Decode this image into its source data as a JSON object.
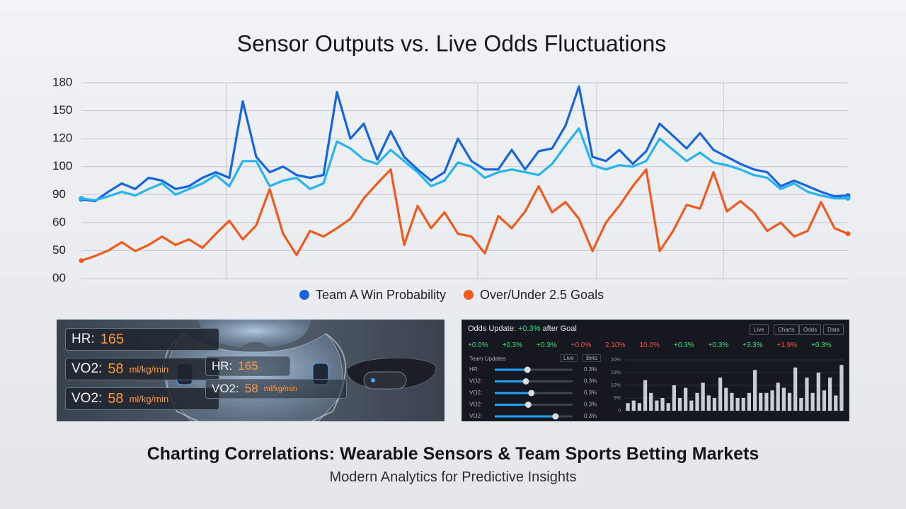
{
  "chart_data": {
    "type": "line",
    "title": "Sensor Outputs vs. Live Odds Fluctuations",
    "ylim": [
      0,
      180
    ],
    "yticks": [
      {
        "value": 0,
        "label": "00"
      },
      50,
      60,
      90,
      100,
      120,
      150,
      180
    ],
    "grid": true,
    "series": [
      {
        "name": "Team A Win Probability",
        "color": "#1565e0",
        "values": [
          85,
          83,
          91,
          94,
          92,
          96,
          95,
          92,
          93,
          96,
          98,
          96,
          160,
          107,
          98,
          100,
          97,
          96,
          97,
          170,
          120,
          136,
          105,
          128,
          107,
          99,
          95,
          98,
          120,
          104,
          99,
          99,
          112,
          99,
          111,
          113,
          134,
          176,
          107,
          104,
          112,
          102,
          111,
          136,
          123,
          113,
          126,
          112,
          107,
          102,
          99,
          98,
          93,
          95,
          93,
          91,
          88,
          89
        ]
      },
      {
        "color": "#25b4f0",
        "values": [
          86,
          84,
          88,
          91,
          89,
          92,
          94,
          90,
          92,
          94,
          97,
          93,
          104,
          104,
          93,
          95,
          96,
          92,
          94,
          118,
          113,
          105,
          102,
          112,
          104,
          98,
          93,
          95,
          103,
          100,
          96,
          98,
          99,
          98,
          97,
          102,
          115,
          131,
          101,
          99,
          101,
          100,
          104,
          120,
          112,
          104,
          110,
          103,
          101,
          99,
          97,
          96,
          92,
          94,
          91,
          89,
          86,
          86
        ]
      },
      {
        "name": "Over/Under 2.5 Goals",
        "color": "#f2591b",
        "values": [
          32,
          40,
          50,
          53,
          49,
          52,
          55,
          52,
          54,
          51,
          56,
          62,
          54,
          59,
          92,
          56,
          42,
          57,
          55,
          58,
          64,
          86,
          94,
          99,
          52,
          78,
          58,
          71,
          56,
          55,
          45,
          67,
          58,
          72,
          93,
          71,
          82,
          64,
          49,
          60,
          78,
          93,
          99,
          49,
          57,
          79,
          75,
          98,
          72,
          83,
          71,
          57,
          60,
          55,
          57,
          82,
          58,
          56
        ]
      }
    ]
  },
  "sensor_panel": {
    "readouts": [
      {
        "label": "HR:",
        "value": "165"
      },
      {
        "label": "VO2:",
        "value": "58",
        "unit": "ml/kg/min"
      },
      {
        "label": "VO2:",
        "value": "58",
        "unit": "ml/kg/min"
      }
    ],
    "overlay": [
      {
        "label": "HR:",
        "value": "165"
      },
      {
        "label": "VO2:",
        "value": "58",
        "unit": "ml/kg/min"
      }
    ]
  },
  "odds_panel": {
    "title": "Odds Update:",
    "change": "+0.3%",
    "after": "after Goal",
    "buttons": [
      "Live",
      "Charts",
      "Odds",
      "Data"
    ],
    "changes": [
      {
        "text": "+0.0%",
        "color": "#3ddc84"
      },
      {
        "text": "+0.3%",
        "color": "#3ddc84"
      },
      {
        "text": "+0.3%",
        "color": "#3ddc84"
      },
      {
        "text": "+0.0%",
        "color": "#ff4d4d"
      },
      {
        "text": "2.10%",
        "color": "#ff4d4d"
      },
      {
        "text": "10.0%",
        "color": "#ff4d4d"
      },
      {
        "text": "+0.3%",
        "color": "#3ddc84"
      },
      {
        "text": "+0.3%",
        "color": "#3ddc84"
      },
      {
        "text": "+3.3%",
        "color": "#3ddc84"
      },
      {
        "text": "+1.9%",
        "color": "#ff4d4d"
      },
      {
        "text": "+0.3%",
        "color": "#3ddc84"
      }
    ],
    "table_header": "Team Updates",
    "table_tags": [
      "Live",
      "Bets"
    ],
    "sliders": [
      {
        "label": "HR:",
        "value": "0.3%",
        "level": 0.42
      },
      {
        "label": "VO2:",
        "value": "0.3%",
        "level": 0.4
      },
      {
        "label": "VO2:",
        "value": "0.3%",
        "level": 0.47
      },
      {
        "label": "VO2:",
        "value": "0.3%",
        "level": 0.43
      },
      {
        "label": "VO2:",
        "value": "0.3%",
        "level": 0.78
      }
    ],
    "bar_chart": {
      "type": "bar",
      "color": "#c9ced6",
      "ylim": [
        0,
        20
      ],
      "yticks": [
        {
          "value": 0,
          "label": "0"
        },
        {
          "value": 5,
          "label": "5%"
        },
        {
          "value": 10,
          "label": "10%"
        },
        {
          "value": 15,
          "label": "15%"
        },
        {
          "value": 20,
          "label": "20%"
        }
      ],
      "values": [
        3,
        4,
        3,
        12,
        7,
        4,
        5,
        3,
        10,
        5,
        9,
        4,
        7,
        11,
        6,
        5,
        13,
        9,
        7,
        5,
        5,
        7,
        16,
        7,
        7,
        8,
        11,
        9,
        7,
        17,
        5,
        13,
        7,
        15,
        8,
        13,
        6,
        18
      ]
    }
  },
  "footer": {
    "title": "Charting Correlations: Wearable Sensors & Team Sports Betting Markets",
    "subtitle": "Modern Analytics for Predictive Insights"
  }
}
